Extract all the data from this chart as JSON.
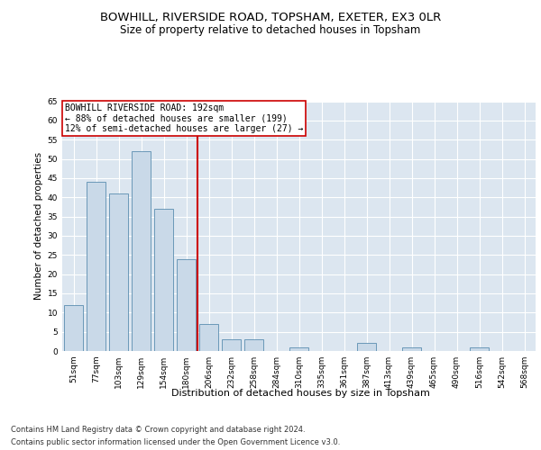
{
  "title1": "BOWHILL, RIVERSIDE ROAD, TOPSHAM, EXETER, EX3 0LR",
  "title2": "Size of property relative to detached houses in Topsham",
  "xlabel": "Distribution of detached houses by size in Topsham",
  "ylabel": "Number of detached properties",
  "categories": [
    "51sqm",
    "77sqm",
    "103sqm",
    "129sqm",
    "154sqm",
    "180sqm",
    "206sqm",
    "232sqm",
    "258sqm",
    "284sqm",
    "310sqm",
    "335sqm",
    "361sqm",
    "387sqm",
    "413sqm",
    "439sqm",
    "465sqm",
    "490sqm",
    "516sqm",
    "542sqm",
    "568sqm"
  ],
  "values": [
    12,
    44,
    41,
    52,
    37,
    24,
    7,
    3,
    3,
    0,
    1,
    0,
    0,
    2,
    0,
    1,
    0,
    0,
    1,
    0,
    0
  ],
  "bar_color": "#c9d9e8",
  "bar_edge_color": "#5a8db0",
  "reference_line_x": 5.5,
  "annotation_line1": "BOWHILL RIVERSIDE ROAD: 192sqm",
  "annotation_line2": "← 88% of detached houses are smaller (199)",
  "annotation_line3": "12% of semi-detached houses are larger (27) →",
  "annotation_box_color": "#ffffff",
  "annotation_box_edge": "#cc0000",
  "ref_line_color": "#cc0000",
  "plot_background": "#dce6f0",
  "ylim": [
    0,
    65
  ],
  "yticks": [
    0,
    5,
    10,
    15,
    20,
    25,
    30,
    35,
    40,
    45,
    50,
    55,
    60,
    65
  ],
  "footer1": "Contains HM Land Registry data © Crown copyright and database right 2024.",
  "footer2": "Contains public sector information licensed under the Open Government Licence v3.0.",
  "title1_fontsize": 9.5,
  "title2_fontsize": 8.5,
  "ylabel_fontsize": 7.5,
  "xlabel_fontsize": 8,
  "tick_fontsize": 6.5,
  "annotation_fontsize": 7,
  "footer_fontsize": 6
}
